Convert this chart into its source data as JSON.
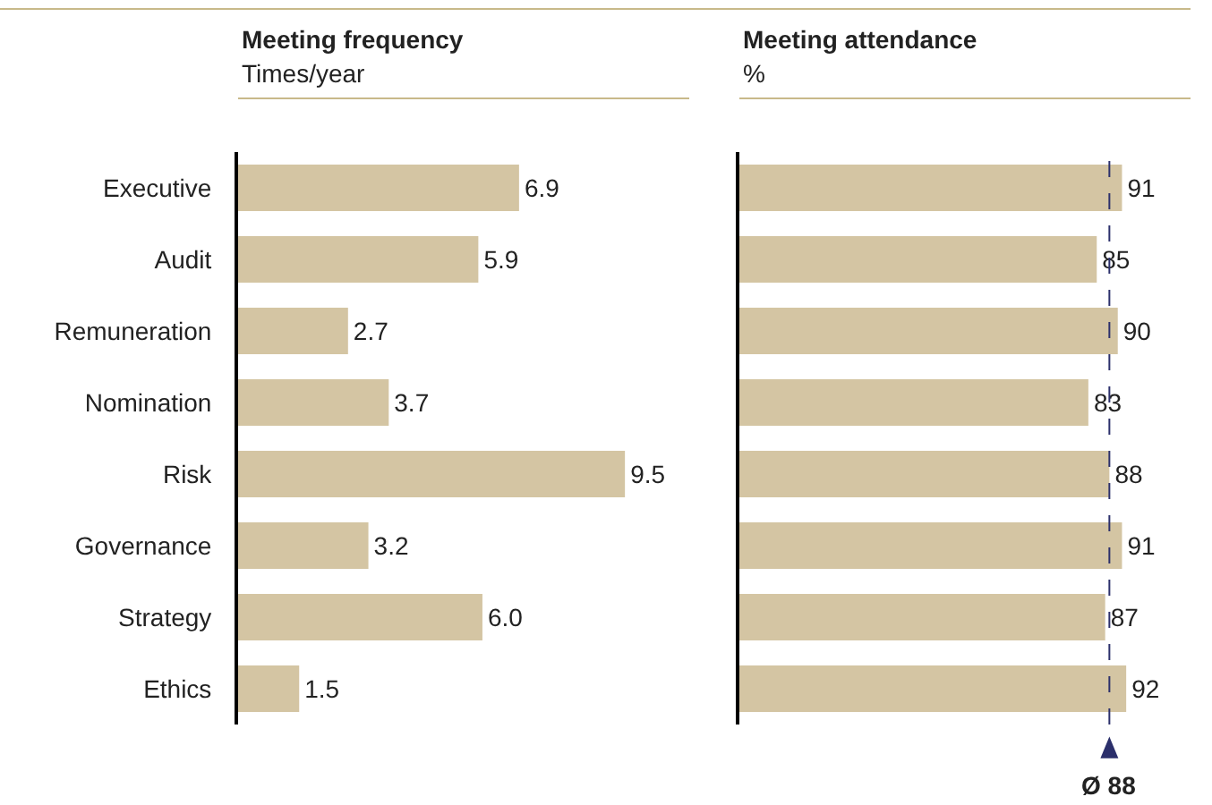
{
  "chart_data": [
    {
      "type": "bar",
      "orientation": "horizontal",
      "title": "Meeting frequency",
      "subtitle": "Times/year",
      "categories": [
        "Executive",
        "Audit",
        "Remuneration",
        "Nomination",
        "Risk",
        "Governance",
        "Strategy",
        "Ethics"
      ],
      "values": [
        6.9,
        5.9,
        2.7,
        3.7,
        9.5,
        3.2,
        6.0,
        1.5
      ],
      "value_labels": [
        "6.9",
        "5.9",
        "2.7",
        "3.7",
        "9.5",
        "3.2",
        "6.0",
        "1.5"
      ],
      "color": "#d4c5a3",
      "tick_labels": "y",
      "legend": false
    },
    {
      "type": "bar",
      "orientation": "horizontal",
      "title": "Meeting attendance",
      "subtitle": "%",
      "categories": [
        null,
        null,
        null,
        null,
        null,
        null,
        null,
        null
      ],
      "values": [
        91,
        85,
        90,
        83,
        88,
        91,
        87,
        92
      ],
      "data_labels": true,
      "color": "#d4c5a3",
      "tick_labels": false,
      "legend": false,
      "ref_lines": [
        {
          "axis": "x",
          "value": 88,
          "label": "Ø 88",
          "line_style": "dashed",
          "color": "#2b2f6b"
        }
      ]
    }
  ]
}
